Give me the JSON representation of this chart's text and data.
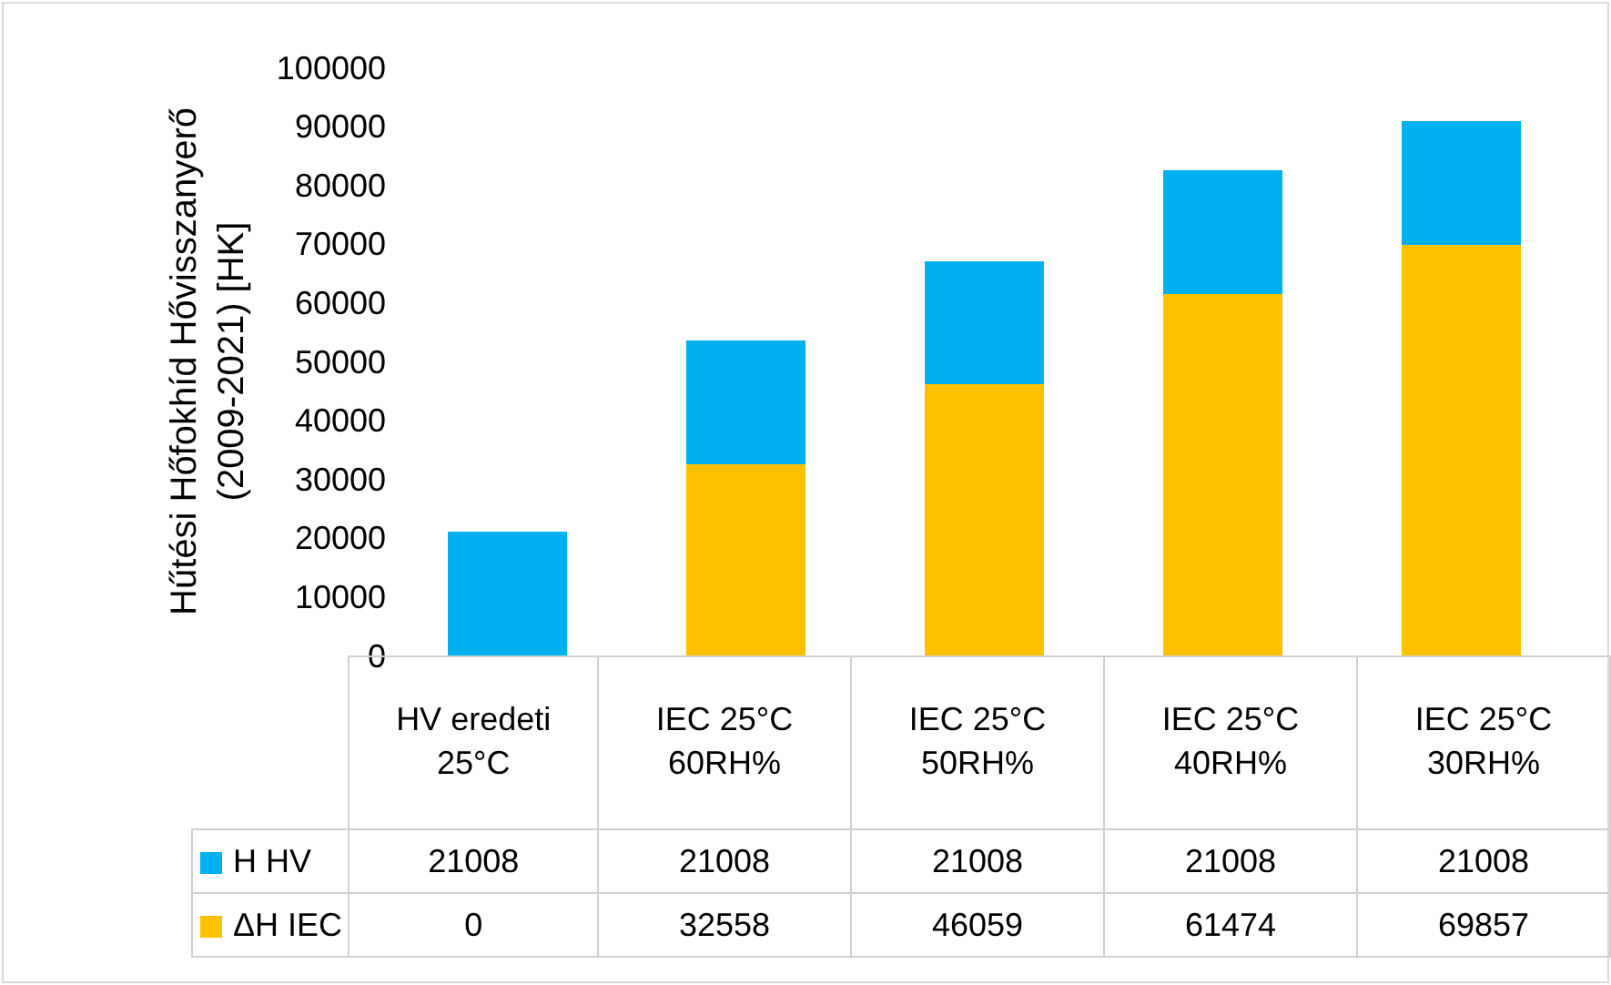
{
  "chart_data": {
    "type": "bar",
    "stacked": true,
    "ylabel": "Hűtési Hőfokhíd Hővisszanyerő (2009-2021) [HK]",
    "categories": [
      "HV eredeti 25°C",
      "IEC 25°C 60RH%",
      "IEC 25°C 50RH%",
      "IEC 25°C 40RH%",
      "IEC 25°C 30RH%"
    ],
    "series": [
      {
        "name": "ΔH IEC",
        "color": "#ffc000",
        "values": [
          0,
          32558,
          46059,
          61474,
          69857
        ]
      },
      {
        "name": "H HV",
        "color": "#00b0f0",
        "values": [
          21008,
          21008,
          21008,
          21008,
          21008
        ]
      }
    ],
    "ylim": [
      0,
      100000
    ],
    "yticks": [
      0,
      10000,
      20000,
      30000,
      40000,
      50000,
      60000,
      70000,
      80000,
      90000,
      100000
    ],
    "grid": false,
    "legend": "bottom",
    "data_labels": true
  }
}
